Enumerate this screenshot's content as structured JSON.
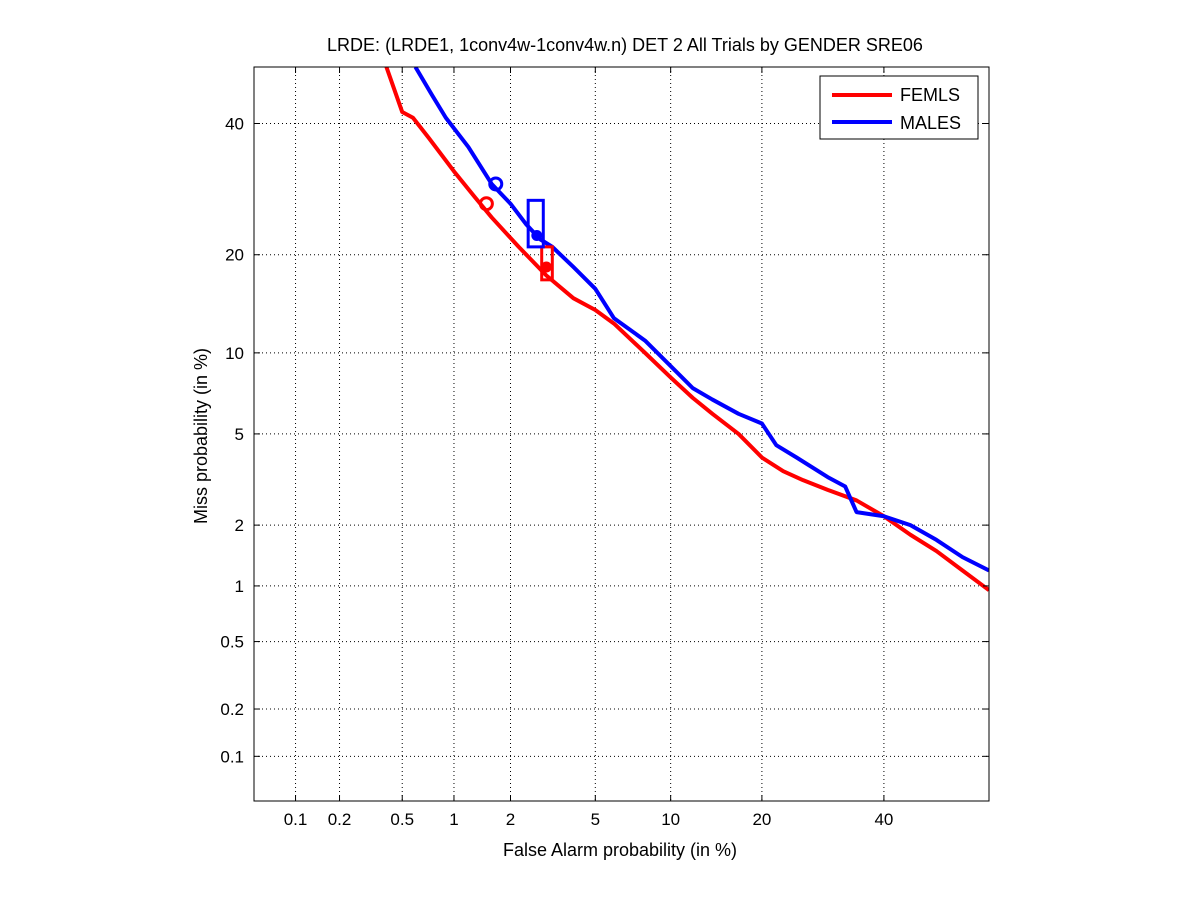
{
  "chart_data": {
    "type": "line",
    "title": "LRDE: (LRDE1, 1conv4w-1conv4w.n) DET 2 All Trials by GENDER SRE06",
    "xlabel": "False Alarm probability (in %)",
    "ylabel": "Miss probability (in %)",
    "x_scale": "probit",
    "y_scale": "probit",
    "xlim": [
      0.05,
      60
    ],
    "ylim": [
      0.05,
      50
    ],
    "grid": true,
    "legend_position": "top-right",
    "x_ticks": [
      0.1,
      0.2,
      0.5,
      1,
      2,
      5,
      10,
      20,
      40
    ],
    "x_tick_labels": [
      "0.1",
      "0.2",
      "0.5",
      "1",
      "2",
      "5",
      "10",
      "20",
      "40"
    ],
    "y_ticks": [
      0.1,
      0.2,
      0.5,
      1,
      2,
      5,
      10,
      20,
      40
    ],
    "y_tick_labels": [
      "0.1",
      "0.2",
      "0.5",
      "1",
      "2",
      "5",
      "10",
      "20",
      "40"
    ],
    "series": [
      {
        "name": "FEMLS",
        "color": "#ff0000",
        "x": [
          0.4,
          0.5,
          0.58,
          0.72,
          1.0,
          1.3,
          1.6,
          2.2,
          3.0,
          4.0,
          5.0,
          6.0,
          8.0,
          10.0,
          12.0,
          14.0,
          17.0,
          20.0,
          23.0,
          26.0,
          30.0,
          35.0,
          40.0,
          45.0,
          50.0,
          55.0,
          60.0
        ],
        "y": [
          50.0,
          42.0,
          41.0,
          37.5,
          32.0,
          28.0,
          25.0,
          21.0,
          17.5,
          15.0,
          13.8,
          12.5,
          10.0,
          8.2,
          6.9,
          6.0,
          5.0,
          4.0,
          3.5,
          3.2,
          2.9,
          2.6,
          2.2,
          1.8,
          1.5,
          1.2,
          0.95
        ]
      },
      {
        "name": "MALES",
        "color": "#0000ff",
        "x": [
          0.6,
          0.75,
          0.9,
          1.2,
          1.6,
          2.0,
          2.4,
          2.8,
          3.2,
          4.0,
          5.0,
          6.0,
          8.0,
          10.0,
          12.0,
          14.0,
          17.0,
          20.0,
          22.0,
          25.0,
          30.0,
          33.0,
          35.0,
          40.0,
          45.0,
          50.0,
          55.0,
          60.0
        ],
        "y": [
          50.0,
          45.0,
          41.0,
          36.0,
          30.0,
          27.0,
          24.0,
          22.0,
          21.0,
          18.5,
          16.0,
          13.0,
          11.0,
          9.0,
          7.5,
          6.8,
          6.0,
          5.5,
          4.5,
          4.0,
          3.3,
          3.0,
          2.3,
          2.2,
          2.0,
          1.7,
          1.4,
          1.2
        ]
      }
    ],
    "markers": [
      {
        "series": "FEMLS",
        "shape": "circle",
        "x": 1.5,
        "y": 27.0
      },
      {
        "series": "MALES",
        "shape": "circle",
        "x": 1.68,
        "y": 30.0
      },
      {
        "series": "FEMLS",
        "shape": "box",
        "x": 3.0,
        "y": 19.0,
        "x_range": [
          2.85,
          3.2
        ],
        "y_range": [
          17.0,
          21.0
        ]
      },
      {
        "series": "MALES",
        "shape": "box",
        "x": 2.65,
        "y": 23.5,
        "x_range": [
          2.45,
          2.9
        ],
        "y_range": [
          21.0,
          27.5
        ]
      },
      {
        "series": "FEMLS",
        "shape": "dot",
        "x": 3.0,
        "y": 18.5
      },
      {
        "series": "MALES",
        "shape": "dot",
        "x": 2.7,
        "y": 22.5
      }
    ]
  }
}
